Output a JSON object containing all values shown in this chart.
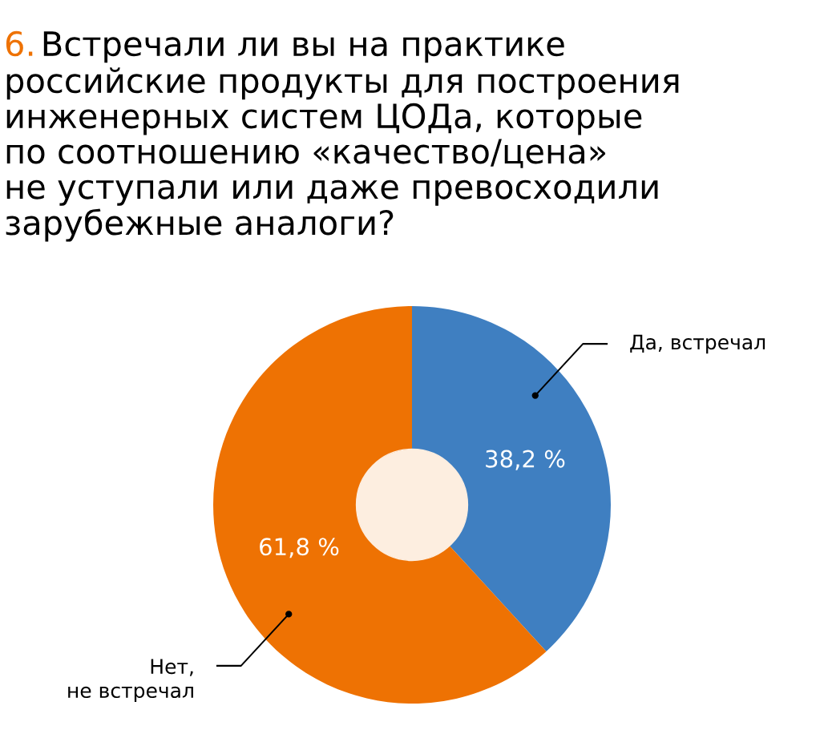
{
  "chart_data": {
    "type": "donut",
    "title": "6. Встречали ли вы на практике\nроссийские продукты для построения\nинженерных систем ЦОДа, которые\nпо соотношению «качество/цена»\nне уступали или даже превосходили\nзарубежные аналоги?",
    "categories": [
      "Да, встречал",
      "Нет,\nне встречал"
    ],
    "values": [
      38.2,
      61.8
    ],
    "colors": [
      "#3f7fc1",
      "#ee7203"
    ],
    "value_labels": [
      "38,2 %",
      "61,8 %"
    ],
    "legend": false
  }
}
